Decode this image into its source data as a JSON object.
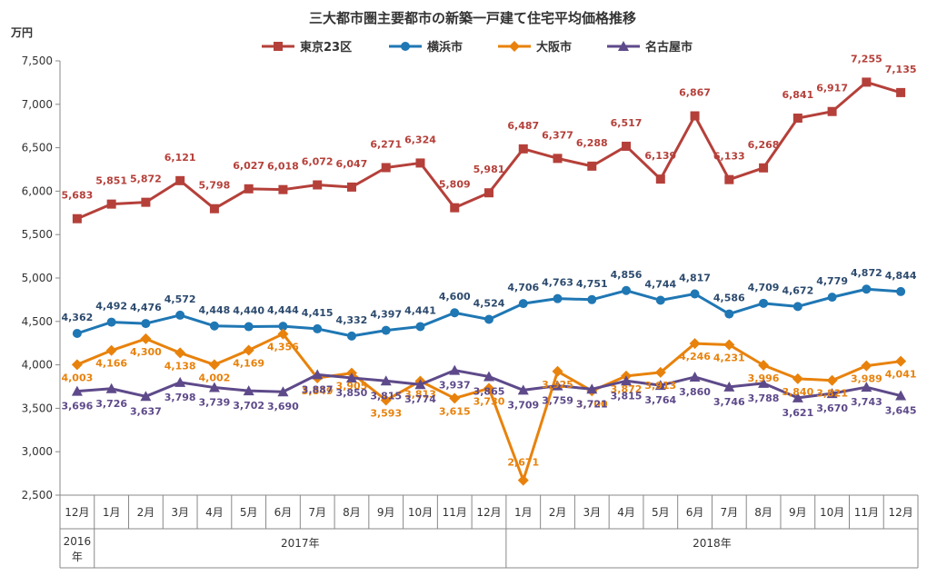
{
  "chart_data": {
    "type": "line",
    "title": "三大都市圏主要都市の新築一戸建て住宅平均価格推移",
    "unit_label": "万円",
    "ylim": [
      2500,
      7500
    ],
    "yticks": [
      "2,500",
      "3,000",
      "3,500",
      "4,000",
      "4,500",
      "5,000",
      "5,500",
      "6,000",
      "6,500",
      "7,000",
      "7,500"
    ],
    "grid": false,
    "legend_position": "top",
    "categories": [
      "12月",
      "1月",
      "2月",
      "3月",
      "4月",
      "5月",
      "6月",
      "7月",
      "8月",
      "9月",
      "10月",
      "11月",
      "12月",
      "1月",
      "2月",
      "3月",
      "4月",
      "5月",
      "6月",
      "7月",
      "8月",
      "9月",
      "10月",
      "11月",
      "12月"
    ],
    "year_groups": [
      {
        "label": "2016年",
        "start": 0,
        "end": 0
      },
      {
        "label": "2017年",
        "start": 1,
        "end": 12
      },
      {
        "label": "2018年",
        "start": 13,
        "end": 24
      }
    ],
    "series": [
      {
        "name": "東京23区",
        "color": "#b5403a",
        "marker": "square",
        "values": [
          5683,
          5851,
          5872,
          6121,
          5798,
          6027,
          6018,
          6072,
          6047,
          6271,
          6324,
          5809,
          5981,
          6487,
          6377,
          6288,
          6517,
          6139,
          6867,
          6133,
          6268,
          6841,
          6917,
          7255,
          7135
        ],
        "labels": [
          "5,683",
          "5,851",
          "5,872",
          "6,121",
          "5,798",
          "6,027",
          "6,018",
          "6,072",
          "6,047",
          "6,271",
          "6,324",
          "5,809",
          "5,981",
          "6,487",
          "6,377",
          "6,288",
          "6,517",
          "6,139",
          "6,867",
          "6,133",
          "6,268",
          "6,841",
          "6,917",
          "7,255",
          "7,135"
        ]
      },
      {
        "name": "横浜市",
        "color": "#1f77b4",
        "marker": "circle",
        "values": [
          4362,
          4492,
          4476,
          4572,
          4448,
          4440,
          4444,
          4415,
          4332,
          4397,
          4441,
          4600,
          4524,
          4706,
          4763,
          4751,
          4856,
          4744,
          4817,
          4586,
          4709,
          4672,
          4779,
          4872,
          4844
        ],
        "labels": [
          "4,362",
          "4,492",
          "4,476",
          "4,572",
          "4,448",
          "4,440",
          "4,444",
          "4,415",
          "4,332",
          "4,397",
          "4,441",
          "4,600",
          "4,524",
          "4,706",
          "4,763",
          "4,751",
          "4,856",
          "4,744",
          "4,817",
          "4,586",
          "4,709",
          "4,672",
          "4,779",
          "4,872",
          "4,844"
        ]
      },
      {
        "name": "大阪市",
        "color": "#e8820c",
        "marker": "diamond",
        "values": [
          4003,
          4166,
          4300,
          4138,
          4002,
          4169,
          4356,
          3849,
          3905,
          3593,
          3813,
          3615,
          3730,
          2671,
          3925,
          3700,
          3872,
          3913,
          4246,
          4231,
          3996,
          3840,
          3821,
          3989,
          4041
        ],
        "labels": [
          "4,003",
          "4,166",
          "4,300",
          "4,138",
          "4,002",
          "4,169",
          "4,356",
          "3,849",
          "3,905",
          "3,593",
          "3,813",
          "3,615",
          "3,730",
          "2,671",
          "3,925",
          "3,700",
          "3,872",
          "3,913",
          "4,246",
          "4,231",
          "3,996",
          "3,840",
          "3,821",
          "3,989",
          "4,041"
        ]
      },
      {
        "name": "名古屋市",
        "color": "#5e4a8a",
        "marker": "triangle",
        "values": [
          3696,
          3726,
          3637,
          3798,
          3739,
          3702,
          3690,
          3887,
          3850,
          3815,
          3774,
          3937,
          3865,
          3709,
          3759,
          3721,
          3815,
          3764,
          3860,
          3746,
          3788,
          3621,
          3670,
          3743,
          3645
        ],
        "labels": [
          "3,696",
          "3,726",
          "3,637",
          "3,798",
          "3,739",
          "3,702",
          "3,690",
          "3,887",
          "3,850",
          "3,815",
          "3,774",
          "3,937",
          "3,865",
          "3,709",
          "3,759",
          "3,721",
          "3,815",
          "3,764",
          "3,860",
          "3,746",
          "3,788",
          "3,621",
          "3,670",
          "3,743",
          "3,645"
        ]
      }
    ]
  }
}
